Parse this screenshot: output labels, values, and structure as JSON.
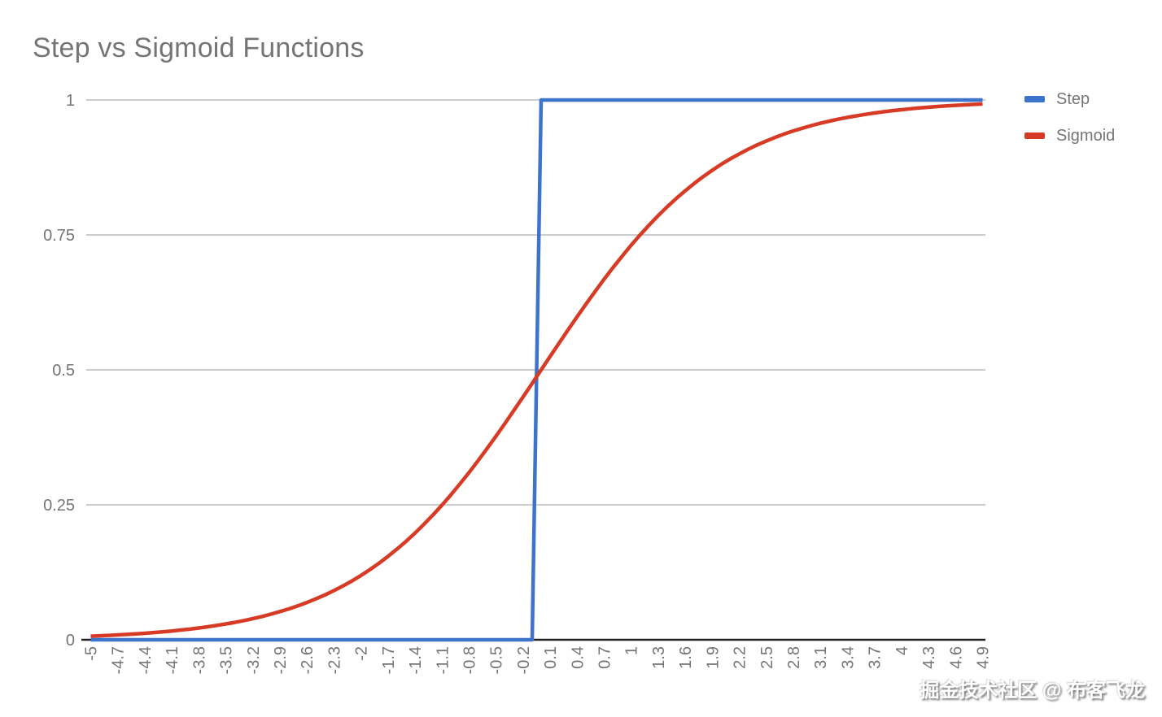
{
  "title": "Step vs Sigmoid Functions",
  "watermark": "掘金技术社区 @ 布客飞龙",
  "legend": {
    "position": "right",
    "items": [
      {
        "label": "Step",
        "color": "#3e73cc"
      },
      {
        "label": "Sigmoid",
        "color": "#d73b25"
      }
    ]
  },
  "chart_data": {
    "type": "line",
    "title": "Step vs Sigmoid Functions",
    "xlabel": "",
    "ylabel": "",
    "x": {
      "start": -5,
      "step": 0.1,
      "count": 100
    },
    "x_tick_labels": [
      "-5",
      "-4.7",
      "-4.4",
      "-4.1",
      "-3.8",
      "-3.5",
      "-3.2",
      "-2.9",
      "-2.6",
      "-2.3",
      "-2",
      "-1.7",
      "-1.4",
      "-1.1",
      "-0.8",
      "-0.5",
      "-0.2",
      "0.1",
      "0.4",
      "0.7",
      "1",
      "1.3",
      "1.6",
      "1.9",
      "2.2",
      "2.5",
      "2.8",
      "3.1",
      "3.4",
      "3.7",
      "4",
      "4.3",
      "4.6",
      "4.9"
    ],
    "x_tick_every": 3,
    "y_ticks": [
      0,
      0.25,
      0.5,
      0.75,
      1
    ],
    "y_tick_labels": [
      "0",
      "0.25",
      "0.5",
      "0.75",
      "1"
    ],
    "ylim": [
      0,
      1
    ],
    "grid": "horizontal",
    "legend_position": "right",
    "colors": {
      "gridline": "#cccccc",
      "axis_line": "#222222",
      "tick_text": "#757575",
      "title_text": "#757575"
    },
    "series": [
      {
        "name": "Step",
        "color": "#3e73cc",
        "values": [
          0,
          0,
          0,
          0,
          0,
          0,
          0,
          0,
          0,
          0,
          0,
          0,
          0,
          0,
          0,
          0,
          0,
          0,
          0,
          0,
          0,
          0,
          0,
          0,
          0,
          0,
          0,
          0,
          0,
          0,
          0,
          0,
          0,
          0,
          0,
          0,
          0,
          0,
          0,
          0,
          0,
          0,
          0,
          0,
          0,
          0,
          0,
          0,
          0,
          0,
          1,
          1,
          1,
          1,
          1,
          1,
          1,
          1,
          1,
          1,
          1,
          1,
          1,
          1,
          1,
          1,
          1,
          1,
          1,
          1,
          1,
          1,
          1,
          1,
          1,
          1,
          1,
          1,
          1,
          1,
          1,
          1,
          1,
          1,
          1,
          1,
          1,
          1,
          1,
          1,
          1,
          1,
          1,
          1,
          1,
          1,
          1,
          1,
          1,
          1
        ]
      },
      {
        "name": "Sigmoid",
        "color": "#d73b25",
        "values": [
          0.0067,
          0.0074,
          0.0082,
          0.0091,
          0.01,
          0.011,
          0.0121,
          0.0134,
          0.0148,
          0.0163,
          0.018,
          0.0198,
          0.0219,
          0.0241,
          0.0266,
          0.0293,
          0.0323,
          0.0356,
          0.0392,
          0.0431,
          0.0474,
          0.0522,
          0.0573,
          0.063,
          0.0691,
          0.0759,
          0.0832,
          0.0911,
          0.0998,
          0.1091,
          0.1192,
          0.1301,
          0.1419,
          0.1545,
          0.168,
          0.1824,
          0.1978,
          0.2142,
          0.2315,
          0.2497,
          0.2689,
          0.2891,
          0.31,
          0.3318,
          0.3543,
          0.3775,
          0.4013,
          0.4256,
          0.4502,
          0.475,
          0.5,
          0.525,
          0.5498,
          0.5744,
          0.5987,
          0.6225,
          0.6457,
          0.6682,
          0.69,
          0.7109,
          0.7311,
          0.7503,
          0.7685,
          0.7858,
          0.8022,
          0.8176,
          0.832,
          0.8455,
          0.8581,
          0.8699,
          0.8808,
          0.8909,
          0.9002,
          0.9089,
          0.9168,
          0.9241,
          0.9309,
          0.937,
          0.9427,
          0.9478,
          0.9526,
          0.9569,
          0.9608,
          0.9644,
          0.9677,
          0.9707,
          0.9734,
          0.9759,
          0.9781,
          0.9802,
          0.982,
          0.9837,
          0.9852,
          0.9866,
          0.9879,
          0.989,
          0.99,
          0.9909,
          0.9918,
          0.9926
        ]
      }
    ]
  }
}
